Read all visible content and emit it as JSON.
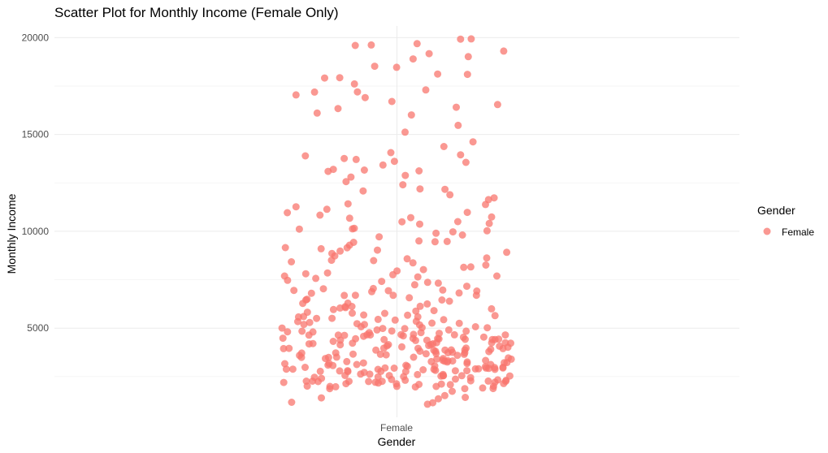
{
  "chart_data": {
    "type": "scatter",
    "title": "Scatter Plot for Monthly Income (Female Only)",
    "xlabel": "Gender",
    "ylabel": "Monthly Income",
    "categories": [
      "Female"
    ],
    "ylim": [
      400,
      20600
    ],
    "y_ticks": [
      5000,
      10000,
      15000,
      20000
    ],
    "y_tick_labels": [
      "5000",
      "10000",
      "15000",
      "20000"
    ],
    "grid": true,
    "jitter": true,
    "legend": {
      "title": "Gender",
      "placement": "right",
      "entries": [
        "Female"
      ]
    },
    "colors": {
      "Female": "#F8766D"
    },
    "series": [
      {
        "name": "Female",
        "x_category": "Female",
        "values": [
          1100,
          1200,
          1400,
          1500,
          1600,
          1700,
          1800,
          1900,
          1950,
          2000,
          2000,
          2050,
          2100,
          2100,
          2150,
          2200,
          2200,
          2250,
          2300,
          2300,
          2350,
          2400,
          2400,
          2450,
          2500,
          2500,
          2550,
          2600,
          2600,
          2650,
          2700,
          2700,
          2750,
          2800,
          2800,
          2850,
          2900,
          2900,
          2950,
          3000,
          3050,
          3100,
          3150,
          3200,
          3250,
          3300,
          3350,
          3400,
          3450,
          3500,
          3550,
          3600,
          3650,
          3700,
          3750,
          3800,
          3850,
          3900,
          3950,
          4000,
          4050,
          4100,
          4150,
          4200,
          4250,
          4300,
          4350,
          4400,
          4450,
          4500,
          4550,
          4600,
          4650,
          4700,
          4750,
          4800,
          4850,
          4900,
          4950,
          5000,
          5100,
          5200,
          5300,
          5400,
          5500,
          5600,
          5700,
          5800,
          5900,
          6000,
          6100,
          6200,
          6300,
          6400,
          6500,
          6600,
          6700,
          6800,
          6900,
          7000,
          7200,
          7400,
          7600,
          7800,
          8000,
          8200,
          8400,
          8600,
          8800,
          9000,
          9200,
          9400,
          9600,
          9800,
          10000,
          10200,
          10400,
          10600,
          10800,
          11000,
          11500,
          12000,
          12500,
          13000,
          13300,
          13500,
          13800,
          14000,
          14300,
          14700,
          15400,
          16000,
          16300,
          16700,
          17000,
          17400,
          17800,
          18000,
          18500,
          18800,
          19000,
          19200,
          19500,
          19700,
          19900,
          1300,
          1500,
          1900,
          2100,
          2200,
          2300,
          2400,
          2500,
          2600,
          2700,
          2800,
          2900,
          3000,
          3100,
          3200,
          3300,
          3400,
          3500,
          3600,
          3700,
          3800,
          3900,
          4000,
          4100,
          4200,
          4300,
          4400,
          4500,
          4600,
          4700,
          4800,
          4900,
          5000,
          5200,
          5400,
          5600,
          5800,
          6000,
          6200,
          6400,
          6600,
          6800,
          7000,
          7300,
          7600,
          7900,
          8200,
          8500,
          8800,
          9100,
          9400,
          9700,
          10000,
          10300,
          10600,
          10900,
          11200,
          11800,
          12200,
          12700,
          13200,
          13600,
          14100,
          15000,
          16100,
          16500,
          16900,
          17200,
          17600,
          18100,
          18600,
          19300,
          19600,
          19950,
          2000,
          2050,
          2150,
          2250,
          2350,
          2450,
          2550,
          2650,
          2750,
          2850,
          2950,
          3050,
          3150,
          3250,
          3350,
          3450,
          3550,
          3650,
          3750,
          3850,
          3950,
          4050,
          4150,
          4250,
          4350,
          4450,
          4550,
          4650,
          4750,
          4850,
          4950,
          5050,
          5150,
          5250,
          5350,
          5450,
          5550,
          5650,
          5750,
          5850,
          5950,
          6050,
          6250,
          6450,
          6650,
          6850,
          7050,
          7250,
          7450,
          7650,
          7850,
          8050,
          8350,
          8650,
          8950,
          9250,
          9550,
          9850,
          10150,
          10450,
          10750,
          11100,
          11600,
          12100,
          12600,
          13100,
          13400,
          13700,
          16600,
          17100,
          18200,
          2050,
          2150,
          2250,
          2350,
          2450,
          2550,
          2650,
          2750,
          2850,
          2950,
          3050,
          3150,
          3250,
          3350,
          3450,
          3550,
          3650,
          3750,
          3850,
          3950,
          4050,
          4150,
          4250,
          4350,
          4450,
          4550,
          4650,
          4750,
          4850,
          4950,
          2000,
          2100,
          2200,
          2300,
          2400,
          2500,
          2600,
          2700,
          2800,
          2900,
          3000,
          3100,
          3200,
          3300,
          3400,
          3500,
          3600,
          3700,
          3800,
          3900,
          4000,
          4100,
          4200,
          4300,
          4400,
          4500,
          4600,
          4700,
          4800,
          4900,
          5000,
          5300,
          5600,
          5900,
          6200,
          6500,
          6800,
          7100,
          7400,
          7700,
          8000,
          8500,
          9000,
          9500,
          10100,
          10700,
          11300,
          12300,
          12900,
          13900
        ]
      }
    ]
  }
}
